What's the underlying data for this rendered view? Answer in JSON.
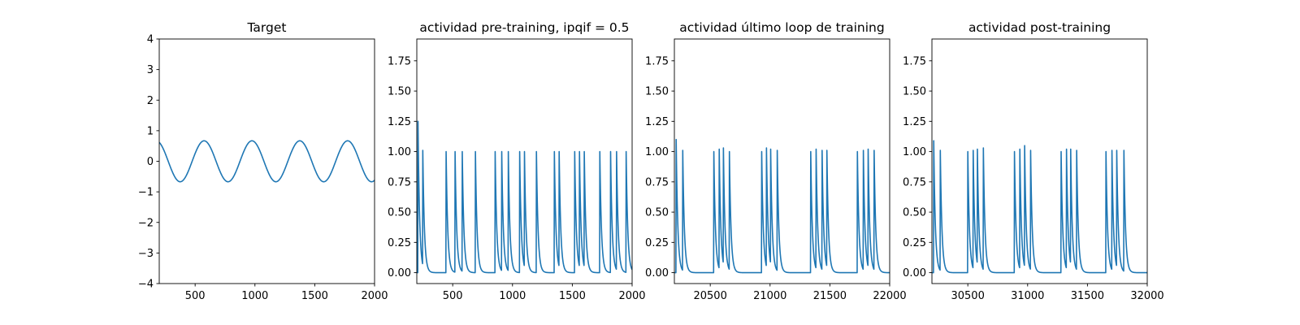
{
  "chart_data": [
    {
      "type": "line",
      "title": "Target",
      "xlabel": "",
      "ylabel": "",
      "xlim": [
        200,
        2000
      ],
      "ylim": [
        -4,
        4
      ],
      "xticks": [
        500,
        1000,
        1500,
        2000
      ],
      "yticks": [
        -4,
        -3,
        -2,
        -1,
        0,
        1,
        2,
        3,
        4
      ],
      "line_color": "#1f77b4",
      "grid": false,
      "series": [
        {
          "kind": "sine",
          "amplitude": 0.67,
          "period": 400,
          "x_range": [
            200,
            2000
          ],
          "peaks_x": [
            575,
            975,
            1375,
            1775
          ],
          "troughs_x": [
            375,
            775,
            1175,
            1575,
            1975
          ],
          "y_start": 0.62
        }
      ]
    },
    {
      "type": "line",
      "title": "actividad pre-training, ipqif = 0.5",
      "xlabel": "",
      "ylabel": "",
      "xlim": [
        200,
        2000
      ],
      "ylim": [
        -0.09,
        1.93
      ],
      "xticks": [
        500,
        1000,
        1500,
        2000
      ],
      "yticks": [
        0.0,
        0.25,
        0.5,
        0.75,
        1.0,
        1.25,
        1.5,
        1.75
      ],
      "line_color": "#1f77b4",
      "grid": false,
      "series": [
        {
          "kind": "spike_train",
          "initial_value": 1.25,
          "spikes": [
            {
              "x": 210,
              "height": 1.25
            },
            {
              "x": 250,
              "height": 1.01
            },
            {
              "x": 445,
              "height": 1.0
            },
            {
              "x": 520,
              "height": 1.0
            },
            {
              "x": 580,
              "height": 1.0
            },
            {
              "x": 690,
              "height": 1.0
            },
            {
              "x": 855,
              "height": 1.0
            },
            {
              "x": 910,
              "height": 1.0
            },
            {
              "x": 965,
              "height": 1.0
            },
            {
              "x": 1060,
              "height": 1.0
            },
            {
              "x": 1100,
              "height": 1.0
            },
            {
              "x": 1200,
              "height": 1.0
            },
            {
              "x": 1350,
              "height": 1.0
            },
            {
              "x": 1390,
              "height": 1.0
            },
            {
              "x": 1520,
              "height": 1.0
            },
            {
              "x": 1560,
              "height": 1.0
            },
            {
              "x": 1600,
              "height": 1.0
            },
            {
              "x": 1730,
              "height": 1.0
            },
            {
              "x": 1820,
              "height": 1.0
            },
            {
              "x": 1870,
              "height": 1.0
            },
            {
              "x": 1950,
              "height": 1.0
            }
          ]
        }
      ]
    },
    {
      "type": "line",
      "title": "actividad último loop de training",
      "xlabel": "",
      "ylabel": "",
      "xlim": [
        20200,
        22000
      ],
      "ylim": [
        -0.09,
        1.93
      ],
      "xticks": [
        20500,
        21000,
        21500,
        22000
      ],
      "yticks": [
        0.0,
        0.25,
        0.5,
        0.75,
        1.0,
        1.25,
        1.5,
        1.75
      ],
      "line_color": "#1f77b4",
      "grid": false,
      "series": [
        {
          "kind": "spike_train",
          "initial_value": 1.1,
          "spikes": [
            {
              "x": 20215,
              "height": 1.1
            },
            {
              "x": 20270,
              "height": 1.01
            },
            {
              "x": 20530,
              "height": 1.0
            },
            {
              "x": 20575,
              "height": 1.02
            },
            {
              "x": 20610,
              "height": 1.03
            },
            {
              "x": 20660,
              "height": 1.0
            },
            {
              "x": 20930,
              "height": 1.0
            },
            {
              "x": 20970,
              "height": 1.03
            },
            {
              "x": 21005,
              "height": 1.02
            },
            {
              "x": 21060,
              "height": 1.01
            },
            {
              "x": 21340,
              "height": 1.0
            },
            {
              "x": 21385,
              "height": 1.02
            },
            {
              "x": 21435,
              "height": 1.01
            },
            {
              "x": 21475,
              "height": 1.01
            },
            {
              "x": 21730,
              "height": 1.0
            },
            {
              "x": 21780,
              "height": 1.01
            },
            {
              "x": 21820,
              "height": 1.02
            },
            {
              "x": 21870,
              "height": 1.01
            }
          ]
        }
      ]
    },
    {
      "type": "line",
      "title": "actividad post-training",
      "xlabel": "",
      "ylabel": "",
      "xlim": [
        30200,
        32000
      ],
      "ylim": [
        -0.09,
        1.93
      ],
      "xticks": [
        30500,
        31000,
        31500,
        32000
      ],
      "yticks": [
        0.0,
        0.25,
        0.5,
        0.75,
        1.0,
        1.25,
        1.5,
        1.75
      ],
      "line_color": "#1f77b4",
      "grid": false,
      "series": [
        {
          "kind": "spike_train",
          "initial_value": 1.09,
          "spikes": [
            {
              "x": 30215,
              "height": 1.09
            },
            {
              "x": 30270,
              "height": 1.01
            },
            {
              "x": 30500,
              "height": 1.0
            },
            {
              "x": 30545,
              "height": 1.01
            },
            {
              "x": 30580,
              "height": 1.02
            },
            {
              "x": 30630,
              "height": 1.03
            },
            {
              "x": 30890,
              "height": 1.0
            },
            {
              "x": 30935,
              "height": 1.02
            },
            {
              "x": 30975,
              "height": 1.05
            },
            {
              "x": 31025,
              "height": 1.01
            },
            {
              "x": 31280,
              "height": 1.0
            },
            {
              "x": 31325,
              "height": 1.02
            },
            {
              "x": 31360,
              "height": 1.02
            },
            {
              "x": 31410,
              "height": 1.01
            },
            {
              "x": 31655,
              "height": 1.0
            },
            {
              "x": 31705,
              "height": 1.01
            },
            {
              "x": 31745,
              "height": 1.01
            },
            {
              "x": 31805,
              "height": 1.01
            }
          ]
        }
      ]
    }
  ]
}
